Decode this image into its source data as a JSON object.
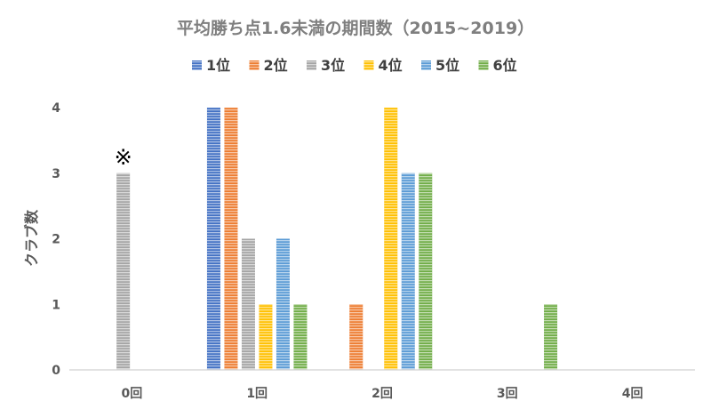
{
  "chart_data": {
    "type": "bar",
    "title": "平均勝ち点1.6未満の期間数（2015~2019）",
    "ylabel": "クラブ数",
    "xlabel": "",
    "categories": [
      "0回",
      "1回",
      "2回",
      "3回",
      "4回"
    ],
    "series": [
      {
        "name": "1位",
        "color": "#4472C4",
        "values": [
          0,
          4,
          0,
          0,
          0
        ]
      },
      {
        "name": "2位",
        "color": "#ED7D31",
        "values": [
          0,
          4,
          1,
          0,
          0
        ]
      },
      {
        "name": "3位",
        "color": "#A5A5A5",
        "values": [
          3,
          2,
          0,
          0,
          0
        ]
      },
      {
        "name": "4位",
        "color": "#FFC000",
        "values": [
          0,
          1,
          4,
          0,
          0
        ]
      },
      {
        "name": "5位",
        "color": "#5B9BD5",
        "values": [
          0,
          2,
          3,
          0,
          0
        ]
      },
      {
        "name": "6位",
        "color": "#70AD47",
        "values": [
          0,
          1,
          3,
          1,
          0
        ]
      }
    ],
    "ylim": [
      0,
      4
    ],
    "yticks": [
      0,
      1,
      2,
      3,
      4
    ],
    "grid": false,
    "legend": "top",
    "annotations": [
      {
        "text": "※",
        "category": "0回",
        "series": "3位"
      }
    ]
  }
}
